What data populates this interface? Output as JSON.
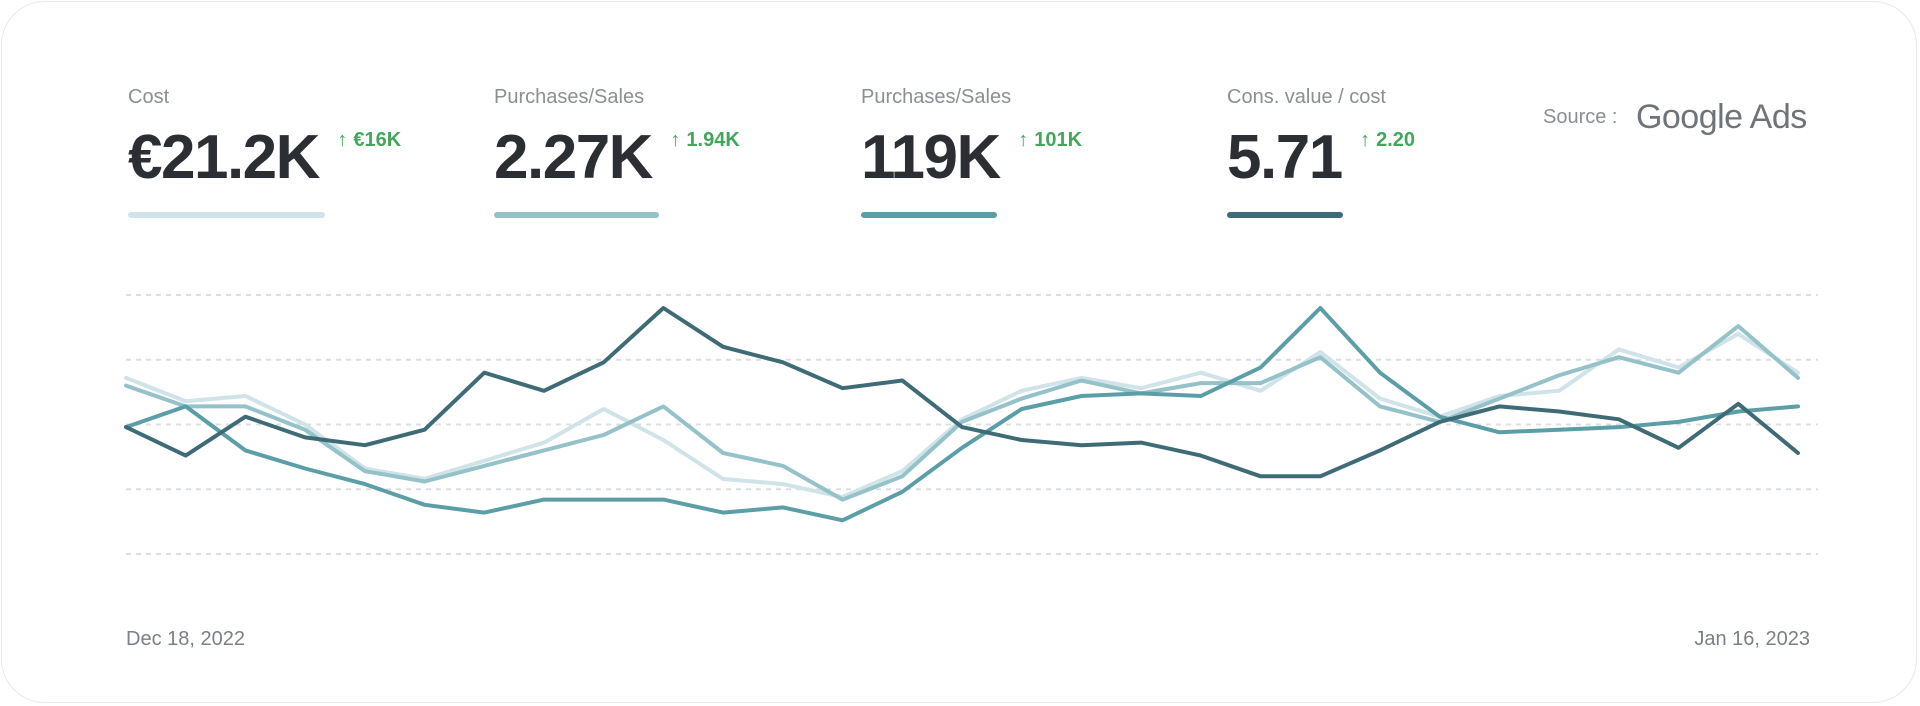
{
  "metrics": [
    {
      "label": "Cost",
      "value": "€21.2K",
      "delta": "€16K",
      "color": "#cfe3e8"
    },
    {
      "label": "Purchases/Sales",
      "value": "2.27K",
      "delta": "1.94K",
      "color": "#95c1c8"
    },
    {
      "label": "Purchases/Sales",
      "value": "119K",
      "delta": "101K",
      "color": "#5c9ea6"
    },
    {
      "label": "Cons. value / cost",
      "value": "5.71",
      "delta": "2.20",
      "color": "#3f6b76"
    }
  ],
  "delta_arrow": "↑",
  "source": {
    "label": "Source :",
    "brand": "Google Ads"
  },
  "chart_data": {
    "type": "line",
    "x_start_label": "Dec 18, 2022",
    "x_end_label": "Jan 16, 2023",
    "grid": true,
    "ylim": [
      0,
      100
    ],
    "series": [
      {
        "color": "#cfe3e8",
        "values": [
          68,
          59,
          61,
          50,
          33,
          29,
          36,
          43,
          56,
          44,
          29,
          27,
          22,
          32,
          52,
          63,
          68,
          64,
          70,
          63,
          78,
          60,
          53,
          61,
          63,
          79,
          72,
          85,
          70
        ]
      },
      {
        "color": "#95c1c8",
        "values": [
          65,
          57,
          57,
          48,
          32,
          28,
          34,
          40,
          46,
          57,
          39,
          34,
          21,
          30,
          51,
          60,
          67,
          62,
          66,
          66,
          76,
          57,
          51,
          60,
          69,
          76,
          70,
          88,
          68
        ]
      },
      {
        "color": "#5c9ea6",
        "values": [
          49,
          57,
          40,
          33,
          27,
          19,
          16,
          21,
          21,
          21,
          16,
          18,
          13,
          24,
          41,
          56,
          61,
          62,
          61,
          72,
          95,
          70,
          53,
          47,
          48,
          49,
          51,
          55,
          57
        ]
      },
      {
        "color": "#3f6b76",
        "values": [
          49,
          38,
          53,
          45,
          42,
          48,
          70,
          63,
          74,
          95,
          80,
          74,
          64,
          67,
          49,
          44,
          42,
          43,
          38,
          30,
          30,
          40,
          51,
          57,
          55,
          52,
          41,
          58,
          39
        ]
      }
    ]
  }
}
